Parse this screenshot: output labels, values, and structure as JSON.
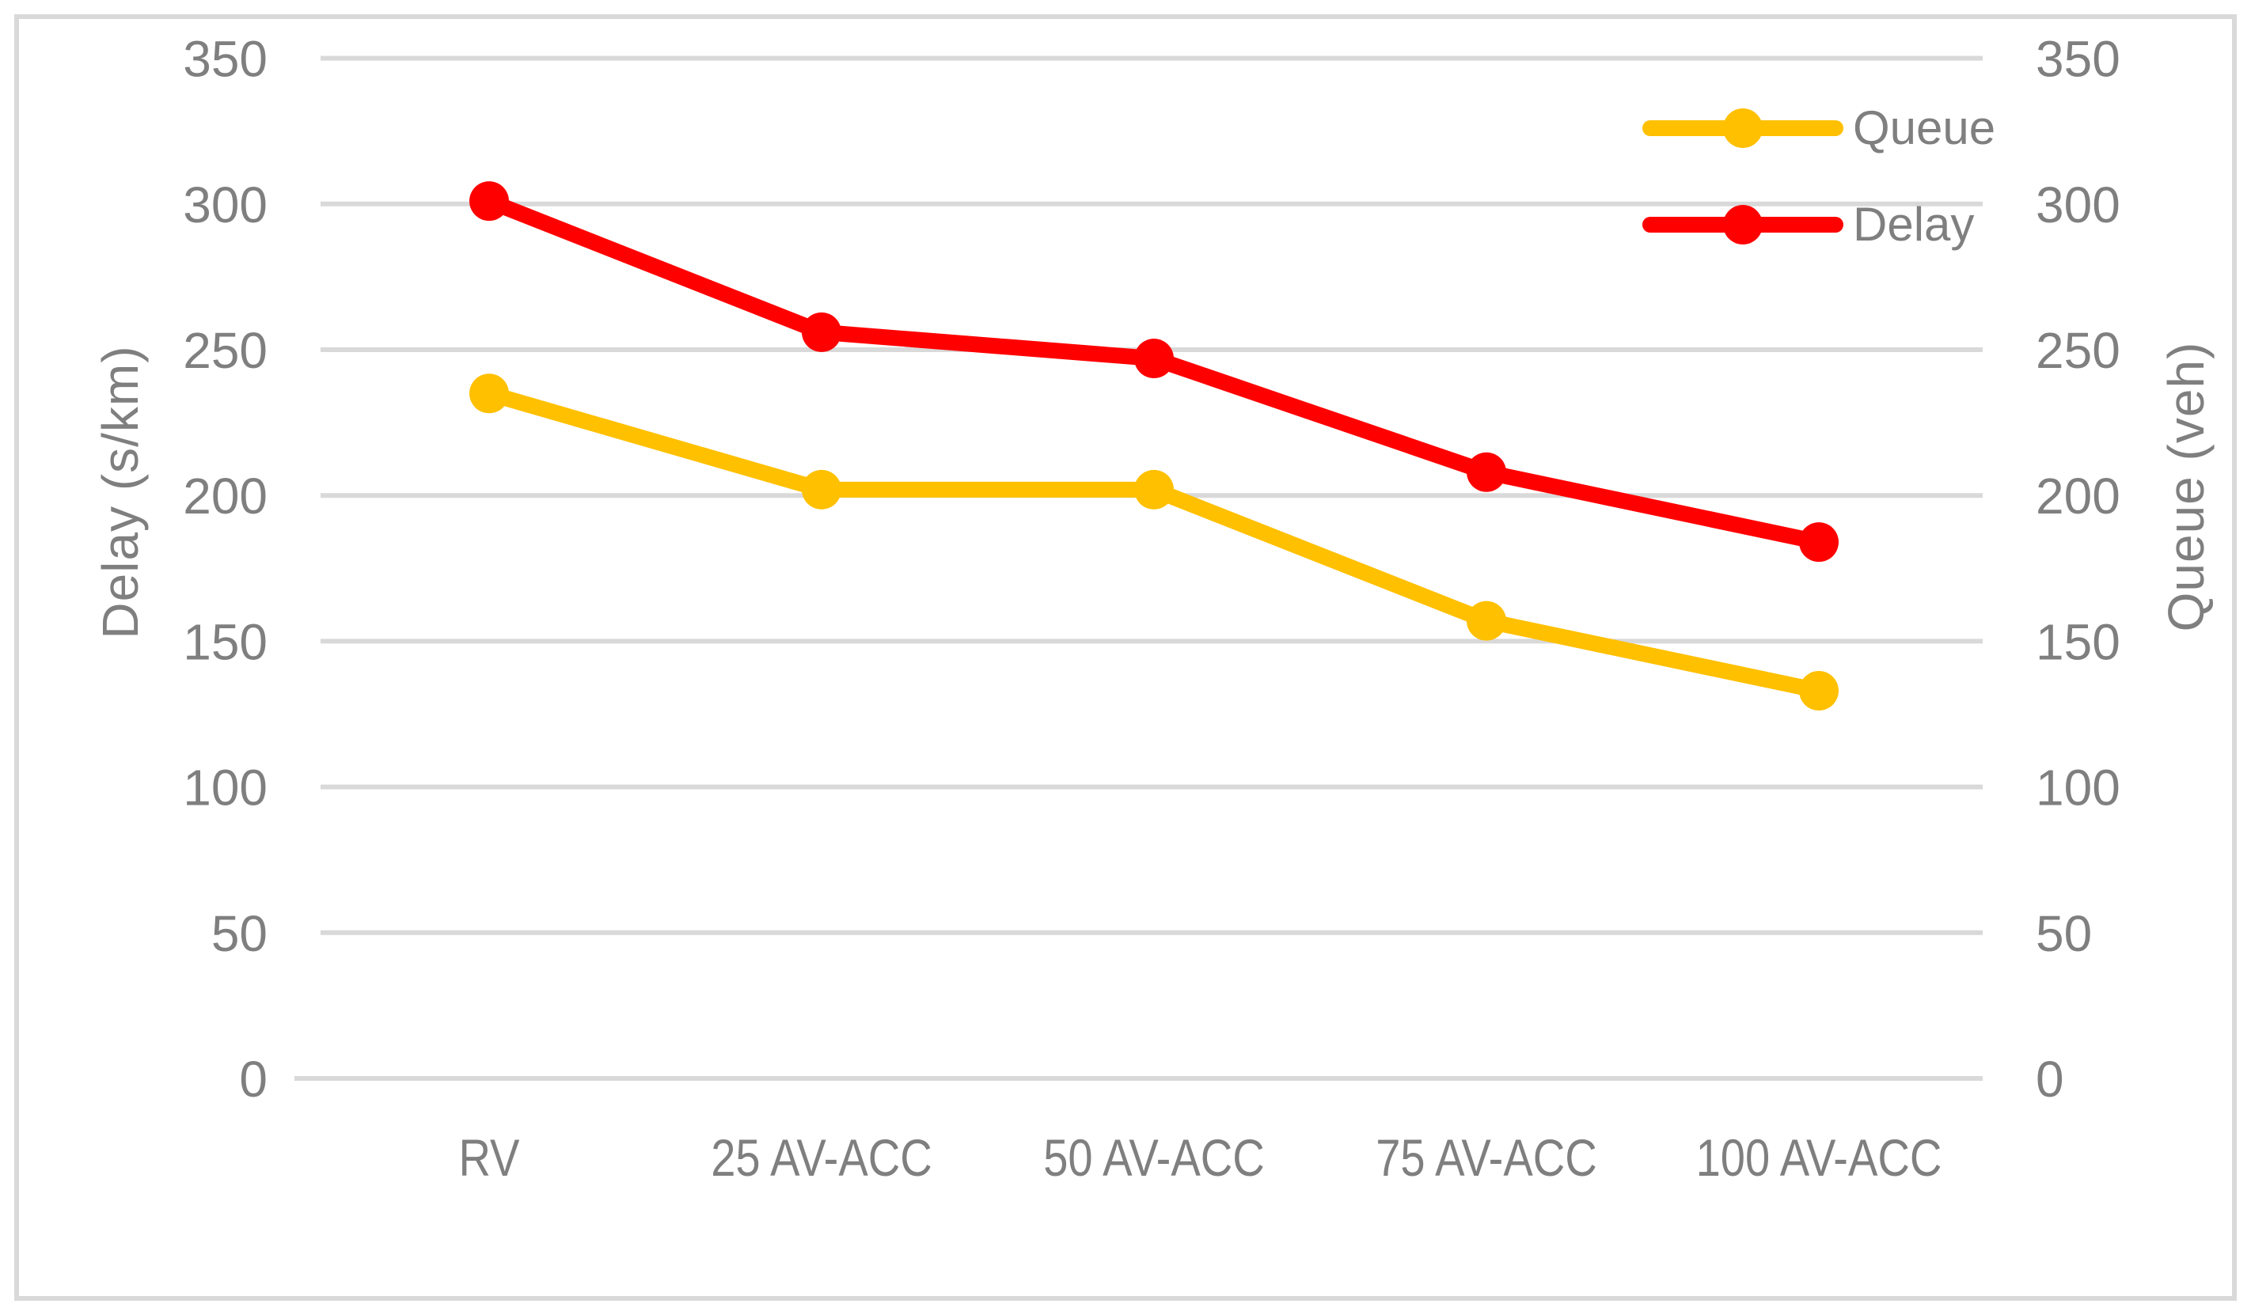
{
  "figure": {
    "background": "#FFFFFF",
    "border_color": "#D9D9D9"
  },
  "chart_data": {
    "type": "line",
    "categories": [
      "RV",
      "25 AV-ACC",
      "50 AV-ACC",
      "75 AV-ACC",
      "100 AV-ACC"
    ],
    "series": [
      {
        "name": "Queue",
        "color": "#FFC000",
        "axis": "right",
        "values": [
          235,
          202,
          202,
          157,
          133
        ]
      },
      {
        "name": "Delay",
        "color": "#FF0000",
        "axis": "left",
        "values": [
          301,
          256,
          247,
          208,
          184
        ]
      }
    ],
    "left_axis": {
      "label": "Delay (s/km)",
      "min": 0,
      "max": 350,
      "step": 50,
      "ticks": [
        0,
        50,
        100,
        150,
        200,
        250,
        300,
        350
      ]
    },
    "right_axis": {
      "label": "Queue (veh)",
      "min": 0,
      "max": 350,
      "step": 50,
      "ticks": [
        0,
        50,
        100,
        150,
        200,
        250,
        300,
        350
      ]
    },
    "grid": true,
    "legend_position": "top-right",
    "text_color": "#7F7F7F",
    "gridline_color": "#D9D9D9"
  }
}
